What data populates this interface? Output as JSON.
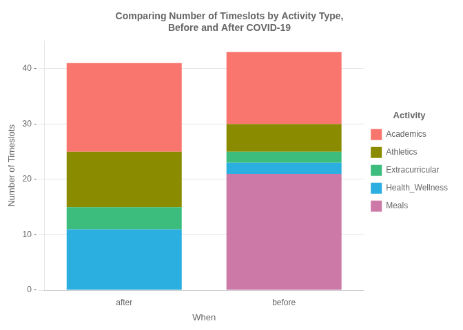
{
  "chart_data": {
    "type": "bar",
    "title": "Comparing Number of Timeslots by Activity Type,\nBefore and After COVID-19",
    "xlabel": "When",
    "ylabel": "Number of Timeslots",
    "categories": [
      "after",
      "before"
    ],
    "stacked": true,
    "series": [
      {
        "name": "Meals",
        "color": "#CC79A7",
        "values": [
          0,
          21
        ]
      },
      {
        "name": "Health_Wellness",
        "color": "#2BAEE0",
        "values": [
          11,
          2
        ]
      },
      {
        "name": "Extracurricular",
        "color": "#3DBD7D",
        "values": [
          4,
          2
        ]
      },
      {
        "name": "Athletics",
        "color": "#8B8B00",
        "values": [
          10,
          5
        ]
      },
      {
        "name": "Academics",
        "color": "#F8766D",
        "values": [
          16,
          13
        ]
      }
    ],
    "ylim": [
      0,
      45
    ],
    "yticks": [
      {
        "value": 0,
        "label": "0 -"
      },
      {
        "value": 10,
        "label": "10 -"
      },
      {
        "value": 20,
        "label": "20 -"
      },
      {
        "value": 30,
        "label": "30 -"
      },
      {
        "value": 40,
        "label": "40 -"
      }
    ],
    "grid": true,
    "legend": "right",
    "legend_title": "Activity"
  }
}
